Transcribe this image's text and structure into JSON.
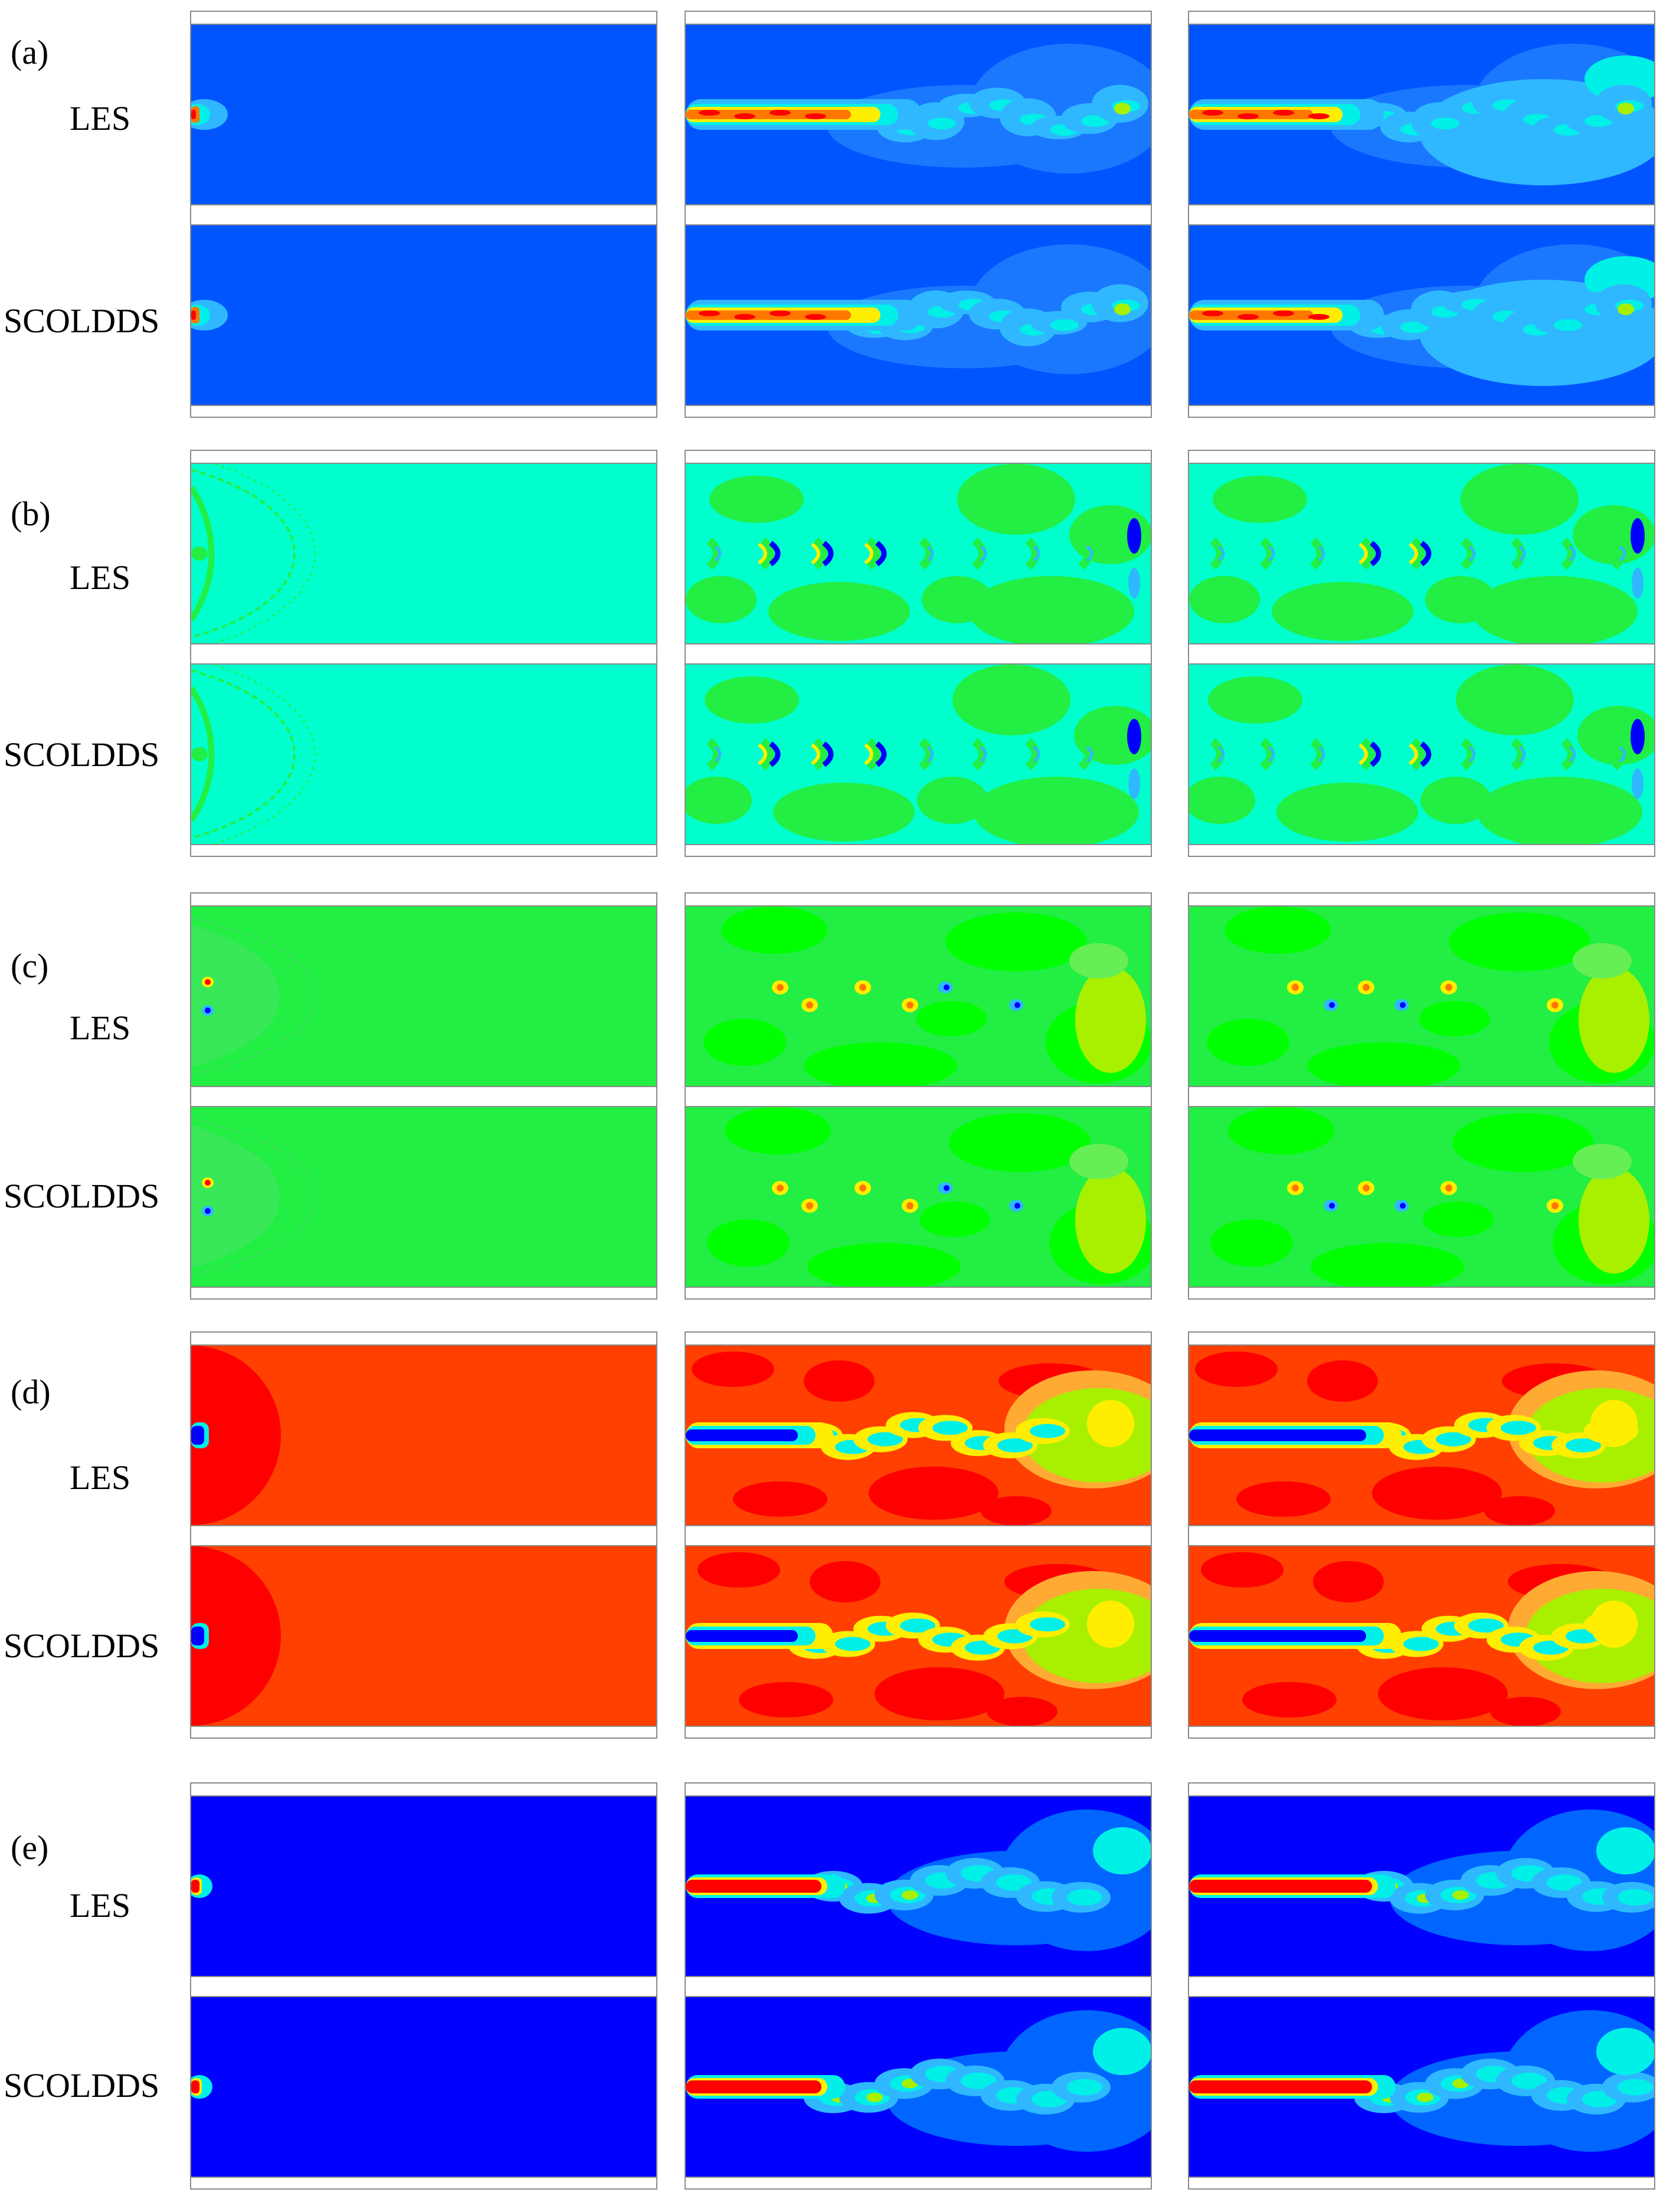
{
  "colors": {
    "blue": "#0000ff",
    "royal": "#0055ff",
    "midblue": "#1a78ff",
    "lightblue": "#2fb8ff",
    "cyan": "#00f0e8",
    "aqua": "#00ffcc",
    "green": "#22ee44",
    "lime": "#00ff00",
    "yellowgreen": "#a8f000",
    "yellow": "#ffee00",
    "orange": "#ff7700",
    "red": "#ff0000",
    "orangered": "#ff4000",
    "frame": "#8a8a8a"
  },
  "method_labels": {
    "les": "LES",
    "scoldds": "SCOLDDS"
  },
  "rows": [
    {
      "tag": "(a)",
      "field": "a",
      "bg": "#0055ff"
    },
    {
      "tag": "(b)",
      "field": "b",
      "bg": "#00ffcc"
    },
    {
      "tag": "(c)",
      "field": "c",
      "bg": "#22ee44"
    },
    {
      "tag": "(d)",
      "field": "d",
      "bg": "#ff4000"
    },
    {
      "tag": "(e)",
      "field": "e",
      "bg": "#0000ff"
    }
  ]
}
